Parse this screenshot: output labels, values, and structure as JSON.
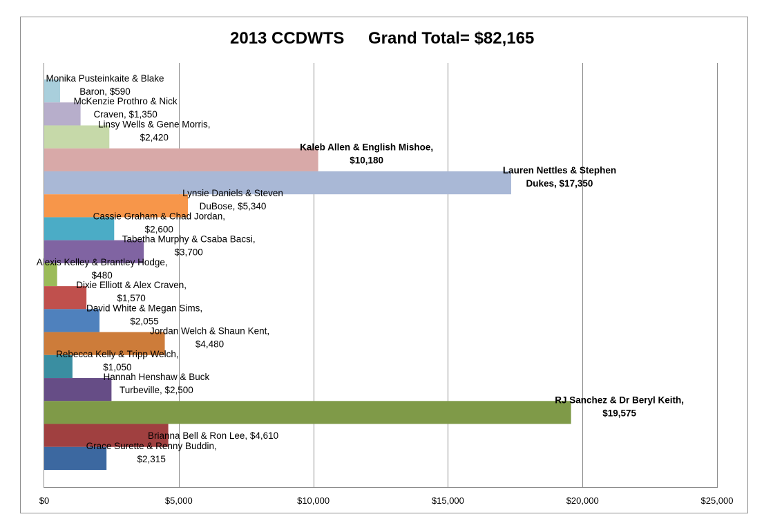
{
  "chart_data": {
    "type": "bar",
    "orientation": "horizontal",
    "title_left": "2013 CCDWTS",
    "title_right": "Grand Total= $82,165",
    "xlim": [
      0,
      25000
    ],
    "x_ticks": [
      0,
      5000,
      10000,
      15000,
      20000,
      25000
    ],
    "x_tick_labels": [
      "$0",
      "$5,000",
      "$10,000",
      "$15,000",
      "$20,000",
      "$25,000"
    ],
    "grid": true,
    "legend": "none",
    "bars": [
      {
        "label": [
          "Monika Pusteinkaite & Blake",
          "Baron, $590"
        ],
        "value": 590,
        "color": "#a9cfdc",
        "bold": false
      },
      {
        "label": [
          "McKenzie Prothro & Nick",
          "Craven, $1,350"
        ],
        "value": 1350,
        "color": "#b7aecb",
        "bold": false
      },
      {
        "label": [
          "Linsy Wells & Gene Morris,",
          "$2,420"
        ],
        "value": 2420,
        "color": "#c6d9a9",
        "bold": false
      },
      {
        "label": [
          "Kaleb Allen & English Mishoe,",
          "$10,180"
        ],
        "value": 10180,
        "color": "#d8a9a8",
        "bold": true
      },
      {
        "label": [
          "Lauren Nettles & Stephen",
          "Dukes, $17,350"
        ],
        "value": 17350,
        "color": "#a9b8d6",
        "bold": true
      },
      {
        "label": [
          "Lynsie Daniels & Steven",
          "DuBose, $5,340"
        ],
        "value": 5340,
        "color": "#f7964a",
        "bold": false
      },
      {
        "label": [
          "Cassie Graham & Chad Jordan,",
          "$2,600"
        ],
        "value": 2600,
        "color": "#4bacc6",
        "bold": false
      },
      {
        "label": [
          "Tabetha Murphy & Csaba Bacsi,",
          "$3,700"
        ],
        "value": 3700,
        "color": "#8064a2",
        "bold": false
      },
      {
        "label": [
          "Alexis Kelley & Brantley Hodge,",
          "$480"
        ],
        "value": 480,
        "color": "#9bbb59",
        "bold": false
      },
      {
        "label": [
          "Dixie Elliott & Alex Craven,",
          "$1,570"
        ],
        "value": 1570,
        "color": "#c0504d",
        "bold": false
      },
      {
        "label": [
          "David White & Megan Sims,",
          "$2,055"
        ],
        "value": 2055,
        "color": "#4f81bd",
        "bold": false
      },
      {
        "label": [
          "Jordan Welch & Shaun Kent,",
          "$4,480"
        ],
        "value": 4480,
        "color": "#cd7c3a",
        "bold": false
      },
      {
        "label": [
          "Rebecca Kelly & Tripp Welch,",
          "$1,050"
        ],
        "value": 1050,
        "color": "#3a8ea1",
        "bold": false
      },
      {
        "label": [
          "Hannah Henshaw & Buck",
          "Turbeville, $2,500"
        ],
        "value": 2500,
        "color": "#664d86",
        "bold": false
      },
      {
        "label": [
          "RJ Sanchez & Dr Beryl Keith,",
          "$19,575"
        ],
        "value": 19575,
        "color": "#7f9a48",
        "bold": true
      },
      {
        "label": [
          "Brianna Bell & Ron Lee, $4,610"
        ],
        "value": 4610,
        "color": "#a04040",
        "bold": false
      },
      {
        "label": [
          "Grace Surette & Renny Buddin,",
          "$2,315"
        ],
        "value": 2315,
        "color": "#3c68a0",
        "bold": false
      }
    ]
  }
}
